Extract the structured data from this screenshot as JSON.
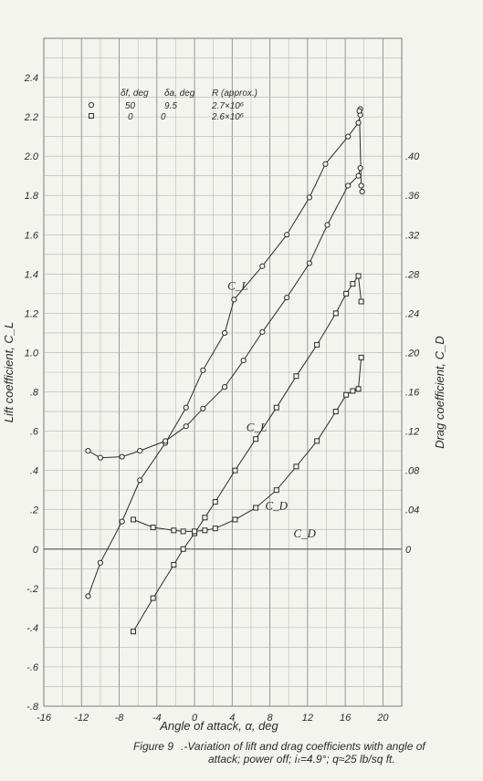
{
  "chart_data": {
    "type": "scatter",
    "xlabel": "Angle of attack, α, deg",
    "ylabel_left": "Lift coefficient, C_L",
    "ylabel_right": "Drag coefficient, C_D",
    "xlim": [
      -16,
      22
    ],
    "ylim_left": [
      -0.8,
      2.6
    ],
    "ylim_right": [
      -0.16,
      0.52
    ],
    "grid": true,
    "x_ticks": [
      -16,
      -12,
      -8,
      -4,
      0,
      4,
      8,
      12,
      16,
      20
    ],
    "x_tick_labels": [
      "-16",
      "-12",
      "-8",
      "-4",
      "0",
      "4",
      "8",
      "12",
      "16",
      "20"
    ],
    "left_ticks": [
      -0.8,
      -0.6,
      -0.4,
      -0.2,
      0,
      0.2,
      0.4,
      0.6,
      0.8,
      1.0,
      1.2,
      1.4,
      1.6,
      1.8,
      2.0,
      2.2,
      2.4
    ],
    "left_tick_labels": [
      "-.8",
      "-.6",
      "-.4",
      "-.2",
      "0",
      ".2",
      ".4",
      ".6",
      ".8",
      "1.0",
      "1.2",
      "1.4",
      "1.6",
      "1.8",
      "2.0",
      "2.2",
      "2.4"
    ],
    "right_ticks": [
      0,
      0.04,
      0.08,
      0.12,
      0.16,
      0.2,
      0.24,
      0.28,
      0.32,
      0.36,
      0.4
    ],
    "right_tick_labels": [
      "0",
      ".04",
      ".08",
      ".12",
      ".16",
      ".20",
      ".24",
      ".28",
      ".32",
      ".36",
      ".40"
    ],
    "legend": {
      "header": [
        "δf, deg",
        "δa, deg",
        "R (approx.)"
      ],
      "rows": [
        {
          "marker": "circle",
          "delta_f": "50",
          "delta_a": "9.5",
          "R": "2.7×10⁶"
        },
        {
          "marker": "square",
          "delta_f": "0",
          "delta_a": "0",
          "R": "2.6×10⁶"
        }
      ]
    },
    "annotations": [
      {
        "text": "C_L",
        "x": 3.5,
        "y": 1.32
      },
      {
        "text": "C_D",
        "x": 7.5,
        "y": 0.2
      },
      {
        "text": "C_L",
        "x": 5.5,
        "y": 0.6
      },
      {
        "text": "C_D",
        "x": 10.5,
        "y": 0.06
      }
    ],
    "series": [
      {
        "marker": "circle",
        "axis": "left",
        "coefficient": "C_L",
        "x": [
          -11.3,
          -10.0,
          -7.7,
          -5.8,
          -3.1,
          -0.9,
          0.9,
          3.2,
          4.2,
          7.2,
          9.8,
          12.2,
          13.9,
          16.3,
          17.4,
          17.6,
          17.6,
          17.5,
          17.7,
          17.8
        ],
        "y": [
          -0.24,
          -0.07,
          0.14,
          0.35,
          0.54,
          0.72,
          0.91,
          1.1,
          1.27,
          1.44,
          1.6,
          1.79,
          1.96,
          2.1,
          2.17,
          2.21,
          2.24,
          2.23,
          1.85,
          1.82
        ]
      },
      {
        "marker": "circle",
        "axis": "right",
        "coefficient": "C_D",
        "x": [
          -11.3,
          -10.0,
          -7.7,
          -5.8,
          -3.1,
          -0.9,
          0.9,
          3.2,
          5.2,
          7.2,
          9.8,
          12.2,
          14.1,
          16.3,
          17.4,
          17.6
        ],
        "y": [
          0.1,
          0.093,
          0.094,
          0.1,
          0.11,
          0.125,
          0.143,
          0.165,
          0.192,
          0.221,
          0.256,
          0.291,
          0.33,
          0.37,
          0.38,
          0.388
        ]
      },
      {
        "marker": "square",
        "axis": "left",
        "coefficient": "C_L",
        "x": [
          -6.5,
          -4.4,
          -2.2,
          -1.2,
          0.0,
          1.1,
          2.2,
          4.3,
          6.5,
          8.7,
          10.8,
          13.0,
          15.0,
          16.1,
          16.8,
          17.4,
          17.7
        ],
        "y": [
          -0.42,
          -0.25,
          -0.08,
          0.0,
          0.08,
          0.16,
          0.24,
          0.4,
          0.56,
          0.72,
          0.88,
          1.04,
          1.2,
          1.3,
          1.35,
          1.39,
          1.26
        ]
      },
      {
        "marker": "square",
        "axis": "right",
        "coefficient": "C_D",
        "x": [
          -6.5,
          -4.4,
          -2.2,
          -1.2,
          0.0,
          1.1,
          2.2,
          4.3,
          6.5,
          8.7,
          10.8,
          13.0,
          15.0,
          16.1,
          16.8,
          17.4,
          17.7
        ],
        "y": [
          0.03,
          0.022,
          0.019,
          0.018,
          0.018,
          0.019,
          0.021,
          0.03,
          0.042,
          0.06,
          0.084,
          0.11,
          0.14,
          0.157,
          0.161,
          0.163,
          0.195
        ]
      }
    ]
  },
  "caption": {
    "label": "Figure 9",
    "line1": ".-Variation of lift and drag coefficients with angle of",
    "line2": "attack; power off; iₜ=4.9°; q≈25 lb/sq ft."
  }
}
